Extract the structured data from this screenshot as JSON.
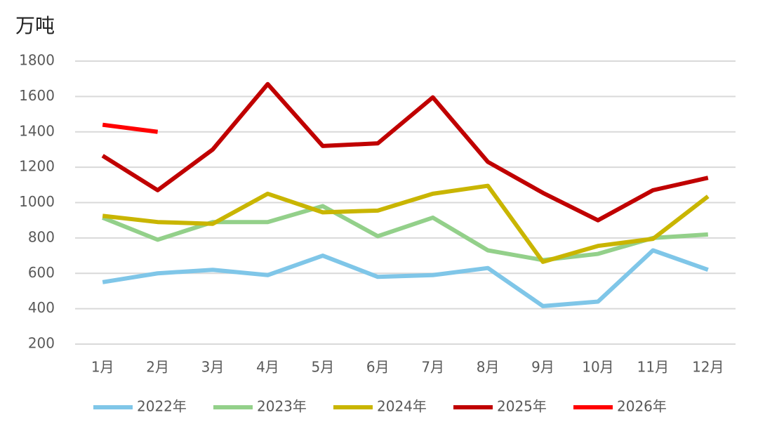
{
  "chart_data": {
    "type": "line",
    "y_unit": "万吨",
    "categories": [
      "1月",
      "2月",
      "3月",
      "4月",
      "5月",
      "6月",
      "7月",
      "8月",
      "9月",
      "10月",
      "11月",
      "12月"
    ],
    "series": [
      {
        "name": "2022年",
        "color": "#7fc6e8",
        "values": [
          550,
          600,
          620,
          590,
          700,
          580,
          590,
          630,
          415,
          440,
          730,
          620
        ]
      },
      {
        "name": "2023年",
        "color": "#93d08a",
        "values": [
          915,
          790,
          890,
          890,
          980,
          810,
          915,
          730,
          675,
          710,
          800,
          820
        ]
      },
      {
        "name": "2024年",
        "color": "#c9b500",
        "values": [
          925,
          890,
          880,
          1050,
          945,
          955,
          1050,
          1095,
          665,
          755,
          795,
          1035
        ]
      },
      {
        "name": "2025年",
        "color": "#c00000",
        "values": [
          1265,
          1070,
          1300,
          1670,
          1320,
          1335,
          1595,
          1230,
          1055,
          900,
          1070,
          1140
        ]
      },
      {
        "name": "2026年",
        "color": "#ff0000",
        "values": [
          1440,
          1400,
          null,
          null,
          null,
          null,
          null,
          null,
          null,
          null,
          null,
          null
        ]
      }
    ],
    "ylim": [
      200,
      1800
    ],
    "yticks": [
      200,
      400,
      600,
      800,
      1000,
      1200,
      1400,
      1600,
      1800
    ],
    "grid": true,
    "legend": "bottom"
  }
}
